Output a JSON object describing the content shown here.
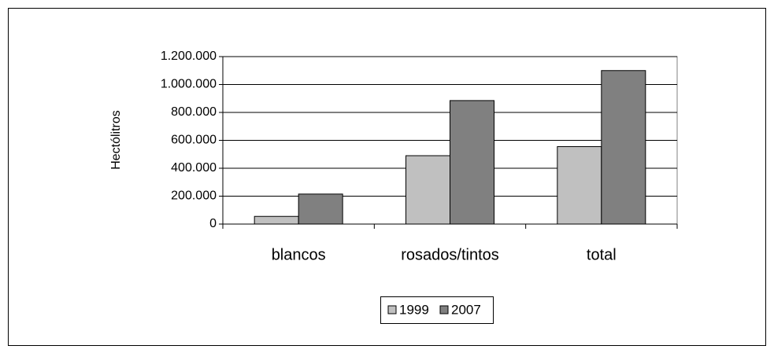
{
  "chart_data": {
    "type": "bar",
    "y_label": "Hectólitros",
    "categories": [
      "blancos",
      "rosados/tintos",
      "total"
    ],
    "series": [
      {
        "name": "1999",
        "color": "#c0c0c0",
        "values": [
          55000,
          490000,
          555000
        ]
      },
      {
        "name": "2007",
        "color": "#808080",
        "values": [
          215000,
          885000,
          1100000
        ]
      }
    ],
    "ylim": [
      0,
      1200000
    ],
    "yticks": [
      0,
      {
        "value": 200000,
        "label": "200.000"
      },
      {
        "value": 400000,
        "label": "400.000"
      },
      {
        "value": 600000,
        "label": "600.000"
      },
      {
        "value": 800000,
        "label": "800.000"
      },
      {
        "value": 1000000,
        "label": "1.000.000"
      },
      {
        "value": 1200000,
        "label": "1.200.000"
      }
    ],
    "grid": true,
    "legend": "bottom"
  }
}
